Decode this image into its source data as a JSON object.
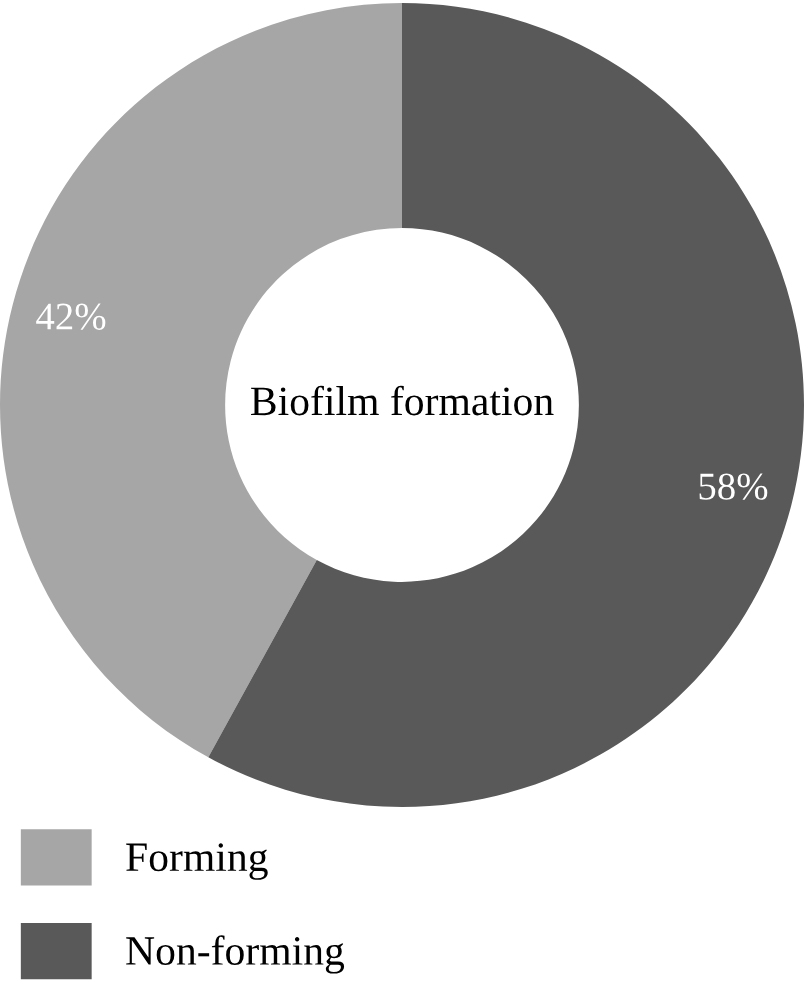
{
  "chart_data": {
    "type": "donut",
    "title": "Biofilm formation",
    "categories": [
      "Forming",
      "Non-forming"
    ],
    "values": [
      42,
      58
    ],
    "colors": [
      "#a6a6a6",
      "#595959"
    ],
    "value_labels": [
      "42%",
      "58%"
    ],
    "legend": "bottom left"
  }
}
